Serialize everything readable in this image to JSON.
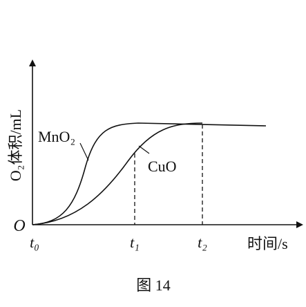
{
  "axes": {
    "y_label": "O₂体积/mL",
    "x_label": "时间/s",
    "origin": "O",
    "ticks": [
      "t₀",
      "t₁",
      "t₂"
    ]
  },
  "curves": {
    "a": "MnO₂",
    "b": "CuO"
  },
  "caption": "图 14"
}
